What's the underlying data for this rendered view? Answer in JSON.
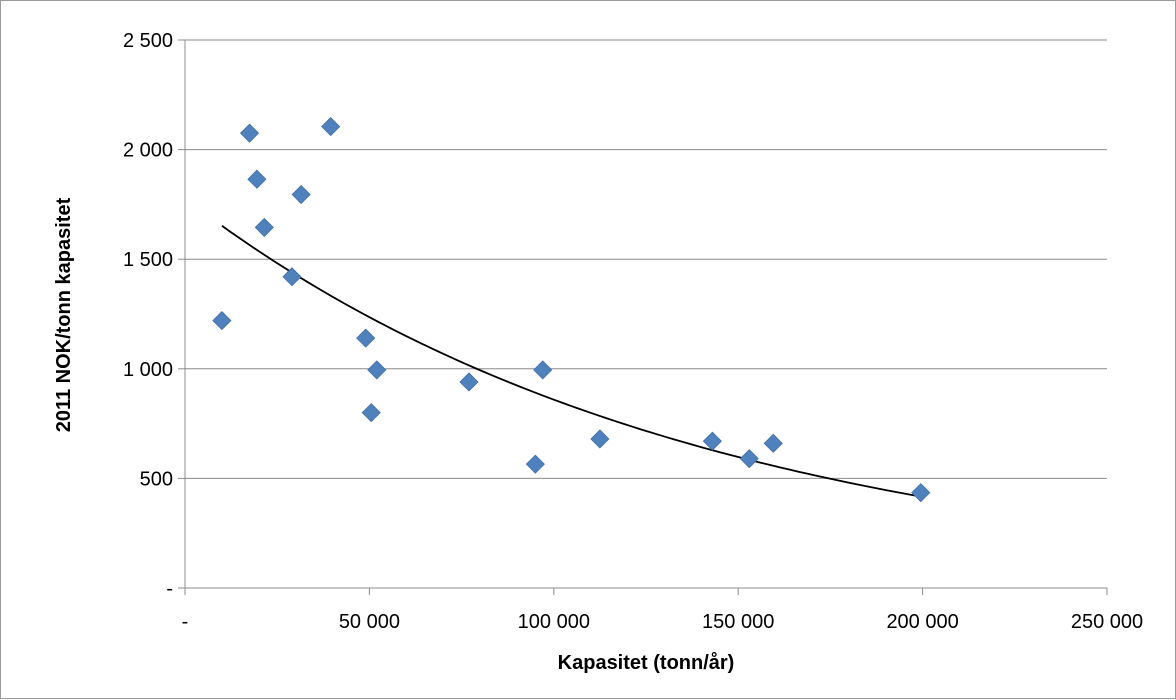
{
  "chart_data": {
    "type": "scatter",
    "title": "",
    "xlabel": "Kapasitet (tonn/år)",
    "ylabel": "2011 NOK/tonn kapasitet",
    "xlim": [
      0,
      250000
    ],
    "ylim": [
      0,
      2500
    ],
    "x_ticks": [
      {
        "value": 0,
        "label": "-"
      },
      {
        "value": 50000,
        "label": "50 000"
      },
      {
        "value": 100000,
        "label": "100 000"
      },
      {
        "value": 150000,
        "label": "150 000"
      },
      {
        "value": 200000,
        "label": "200 000"
      },
      {
        "value": 250000,
        "label": "250 000"
      }
    ],
    "y_ticks": [
      {
        "value": 0,
        "label": "-"
      },
      {
        "value": 500,
        "label": "500"
      },
      {
        "value": 1000,
        "label": "1 000"
      },
      {
        "value": 1500,
        "label": "1 500"
      },
      {
        "value": 2000,
        "label": "2 000"
      },
      {
        "value": 2500,
        "label": "2 500"
      }
    ],
    "grid": {
      "horizontal": true,
      "vertical": false
    },
    "series": [
      {
        "marker": "diamond",
        "color": "#4F81BD",
        "points": [
          {
            "x": 10000,
            "y": 1220
          },
          {
            "x": 17500,
            "y": 2075
          },
          {
            "x": 19500,
            "y": 1865
          },
          {
            "x": 21500,
            "y": 1645
          },
          {
            "x": 29000,
            "y": 1420
          },
          {
            "x": 31500,
            "y": 1795
          },
          {
            "x": 39500,
            "y": 2105
          },
          {
            "x": 49000,
            "y": 1140
          },
          {
            "x": 50500,
            "y": 800
          },
          {
            "x": 52000,
            "y": 995
          },
          {
            "x": 77000,
            "y": 940
          },
          {
            "x": 95000,
            "y": 565
          },
          {
            "x": 97000,
            "y": 995
          },
          {
            "x": 112500,
            "y": 680
          },
          {
            "x": 143000,
            "y": 670
          },
          {
            "x": 153000,
            "y": 590
          },
          {
            "x": 159500,
            "y": 660
          },
          {
            "x": 199500,
            "y": 435
          }
        ]
      }
    ],
    "trendline": {
      "type": "exponential",
      "color": "#000000",
      "x_range": [
        10000,
        199500
      ],
      "points": [
        {
          "x": 10000,
          "y": 1660
        },
        {
          "x": 50000,
          "y": 1210
        },
        {
          "x": 100000,
          "y": 870
        },
        {
          "x": 150000,
          "y": 610
        },
        {
          "x": 199500,
          "y": 410
        }
      ]
    }
  }
}
